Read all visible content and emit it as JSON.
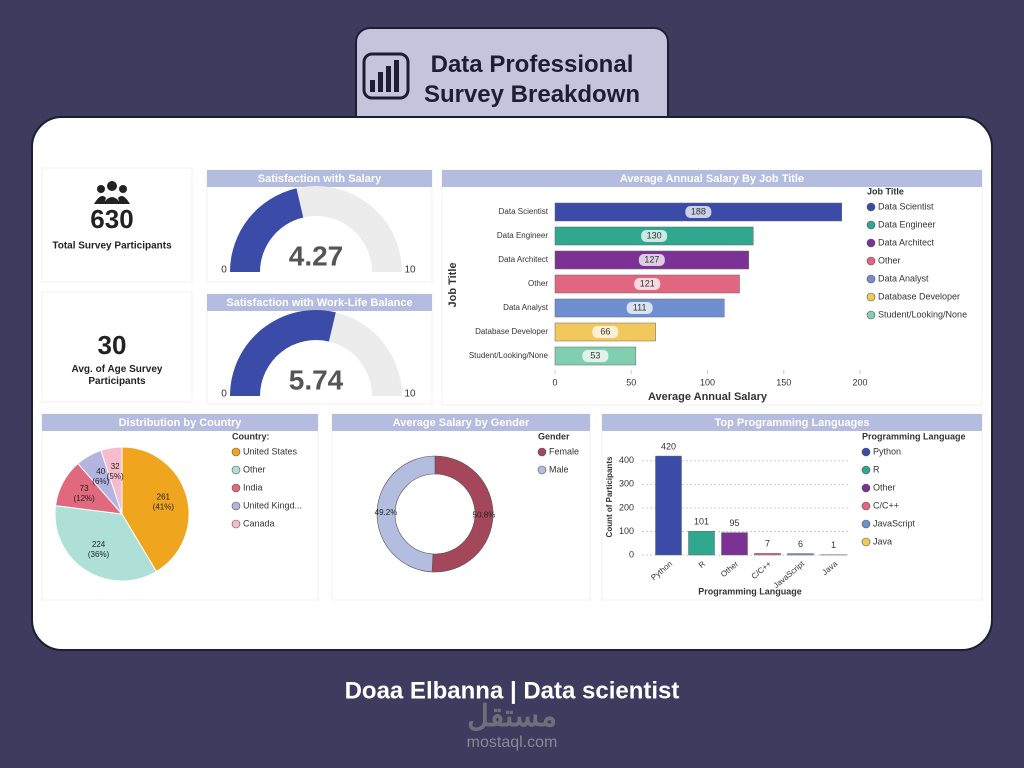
{
  "header": {
    "title": "Data Professional Survey Breakdown"
  },
  "cards": [
    {
      "value": 630,
      "label": "Total Survey Participants"
    },
    {
      "value": 30,
      "label": "Avg. of Age Survey Participants"
    }
  ],
  "chart_data": [
    {
      "type": "gauge",
      "title": "Satisfaction with Salary",
      "value": 4.27,
      "ylim": [
        0,
        10
      ],
      "yticks": [
        0,
        10
      ],
      "color": "#3b4ba8"
    },
    {
      "type": "gauge",
      "title": "Satisfaction with Work-Life Balance",
      "value": 5.74,
      "ylim": [
        0,
        10
      ],
      "yticks": [
        0,
        10
      ],
      "color": "#3b4ba8"
    },
    {
      "type": "hbar",
      "title": "Average Annual Salary By Job Title",
      "categories": [
        "Data Scientist",
        "Data Engineer",
        "Data Architect",
        "Other",
        "Data Analyst",
        "Database Developer",
        "Student/Looking/None"
      ],
      "values": [
        188,
        130,
        127,
        121,
        111,
        66,
        53
      ],
      "colors": [
        "#3b4ba8",
        "#2fa88f",
        "#7b3294",
        "#e0677f",
        "#6f8fd0",
        "#f3c85a",
        "#7fcfb0"
      ],
      "xlim": [
        0,
        200
      ],
      "xticks": [
        0,
        50,
        100,
        150,
        200
      ],
      "x_label": "Average Annual Salary",
      "y_label": "Job Title",
      "legend_title": "Job Title",
      "legend": "right"
    },
    {
      "type": "pie",
      "title": "Distribution by Country",
      "categories": [
        "United States",
        "Other",
        "India",
        "United Kingd...",
        "Canada"
      ],
      "values": [
        261,
        224,
        73,
        40,
        32
      ],
      "percent_labels": [
        "(41%)",
        "(36%)",
        "(12%)",
        "(6%)",
        "(5%)"
      ],
      "colors": [
        "#f0a51e",
        "#aee0d8",
        "#e0697d",
        "#b3b5e0",
        "#f5bccb"
      ],
      "legend_title": "Country:",
      "legend": "right"
    },
    {
      "type": "donut",
      "title": "Average Salary by Gender",
      "categories": [
        "Female",
        "Male"
      ],
      "values": [
        50.8,
        49.2
      ],
      "value_labels": [
        "50.8%",
        "49.2%"
      ],
      "colors": [
        "#a5475a",
        "#b3bde0"
      ],
      "legend_title": "Gender",
      "legend": "right"
    },
    {
      "type": "bar",
      "title": "Top Programming Languages",
      "categories": [
        "Python",
        "R",
        "Other",
        "C/C++",
        "JavaScript",
        "Java"
      ],
      "values": [
        420,
        101,
        95,
        7,
        6,
        1
      ],
      "colors": [
        "#3b4ba8",
        "#2fa88f",
        "#7b3294",
        "#e0677f",
        "#6f8fd0",
        "#f3c85a"
      ],
      "ylim": [
        0,
        450
      ],
      "yticks": [
        0,
        100,
        200,
        300,
        400
      ],
      "grid": true,
      "x_label": "Programming Language",
      "y_label": "Count of Participants",
      "legend_title": "Programming Language",
      "legend": "right"
    }
  ],
  "footer": {
    "author": "Doaa Elbanna | Data scientist",
    "watermark": "مستقل",
    "site": "mostaql.com"
  }
}
